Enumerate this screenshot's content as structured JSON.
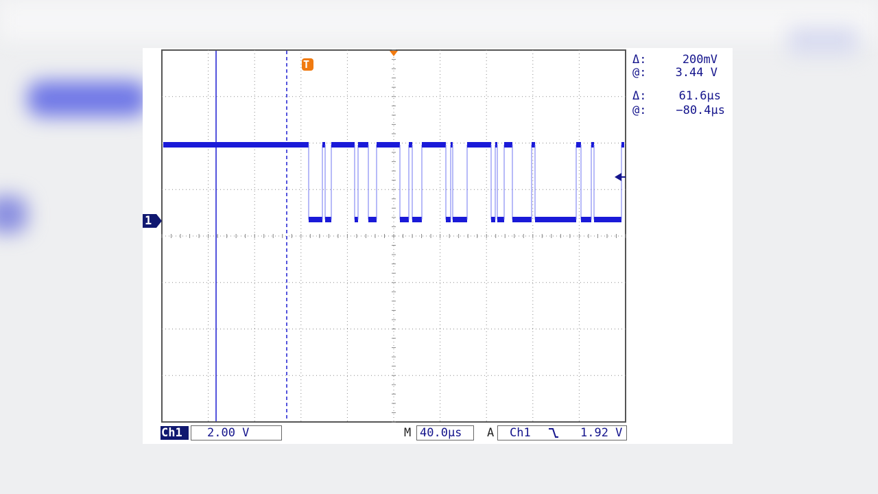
{
  "cursor_readout": {
    "amplitude": {
      "delta_label": "Δ:",
      "delta": "200mV",
      "at_label": "@:",
      "at": "3.44 V"
    },
    "time": {
      "delta_label": "Δ:",
      "delta": "61.6µs",
      "at_label": "@:",
      "at": "−80.4µs"
    }
  },
  "status_bar": {
    "channel": "Ch1",
    "volts_per_div": "2.00 V",
    "timebase_label": "M",
    "timebase": "40.0µs",
    "trigger_label": "A",
    "trigger_source": "Ch1",
    "trigger_level": "1.92 V"
  },
  "markers": {
    "trigger": "T",
    "channel": "1"
  }
}
